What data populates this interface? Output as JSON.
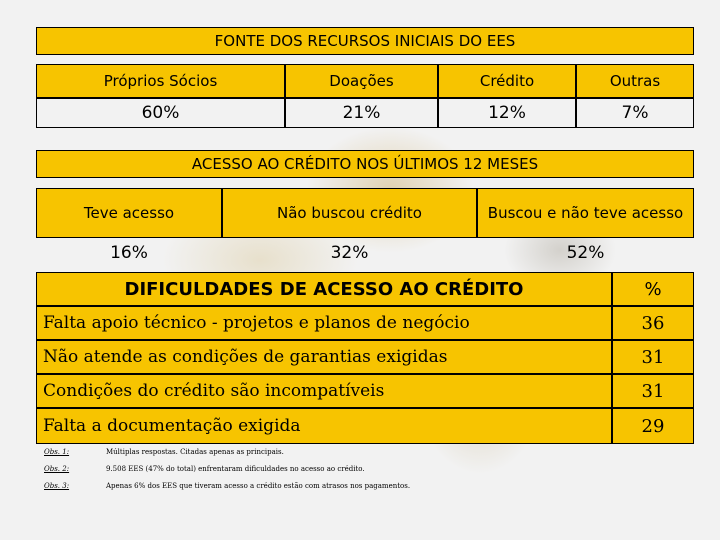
{
  "section1": {
    "title": "FONTE DOS RECURSOS INICIAIS DO EES",
    "headers": [
      "Próprios Sócios",
      "Doações",
      "Crédito",
      "Outras"
    ],
    "values": [
      "60%",
      "21%",
      "12%",
      "7%"
    ]
  },
  "section2": {
    "title": "ACESSO AO CRÉDITO NOS ÚLTIMOS 12 MESES",
    "headers": [
      "Teve acesso",
      "Não buscou crédito",
      "Buscou e não teve acesso"
    ],
    "values": [
      "16%",
      "32%",
      "52%"
    ]
  },
  "section3": {
    "title": "DIFICULDADES DE ACESSO AO CRÉDITO",
    "pct_header": "%",
    "rows": [
      {
        "label": "Falta apoio técnico - projetos e planos de negócio",
        "value": "36"
      },
      {
        "label": "Não atende as condições de garantias exigidas",
        "value": "31"
      },
      {
        "label": "Condições do crédito são incompatíveis",
        "value": "31"
      },
      {
        "label": "Falta a documentação exigida",
        "value": "29"
      }
    ]
  },
  "notes": [
    {
      "label": "Obs. 1:",
      "text": "Múltiplas respostas. Citadas apenas as principais."
    },
    {
      "label": "Obs. 2:",
      "text": "9.508 EES (47% do total) enfrentaram dificuldades no acesso ao crédito."
    },
    {
      "label": "Obs. 3:",
      "text": "Apenas 6% dos EES que tiveram acesso a crédito estão com atrasos nos pagamentos."
    }
  ],
  "colors": {
    "accent": "#f7c400",
    "background": "#f2f2f2"
  }
}
